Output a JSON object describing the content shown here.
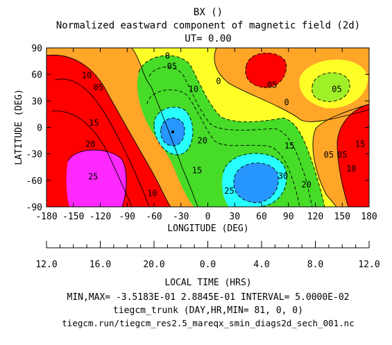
{
  "chart_data": {
    "type": "contour",
    "title": "BX ()",
    "subtitle": "Normalized eastward component of magnetic field (2d)",
    "ut_label": "UT= 0.00",
    "xlabel": "LONGITUDE (DEG)",
    "ylabel": "LATITUDE (DEG)",
    "x_ticks": [
      -180,
      -150,
      -120,
      -90,
      -60,
      -30,
      0,
      30,
      60,
      90,
      120,
      150,
      180
    ],
    "y_ticks": [
      -90,
      -60,
      -30,
      0,
      30,
      60,
      90
    ],
    "xlim": [
      -180,
      180
    ],
    "ylim": [
      -90,
      90
    ],
    "local_time_label": "LOCAL TIME (HRS)",
    "local_time_ticks": [
      "12.0",
      "16.0",
      "20.0",
      "0.0",
      "4.0",
      "8.0",
      "12.0"
    ],
    "min_max_interval": "MIN,MAX= -3.5183E-01  2.8845E-01 INTERVAL=  5.0000E-02",
    "model_info": "tiegcm_trunk (DAY,HR,MIN= 81, 0, 0)",
    "file_info": "tiegcm.run/tiegcm_res2.5_mareqx_smin_diags2d_sech_001.nc",
    "min": -0.35183,
    "max": 0.28845,
    "interval": 0.05,
    "contour_labels": [
      {
        "text": "0",
        "x": -45,
        "y": 78
      },
      {
        "text": "05",
        "x": -40,
        "y": 66
      },
      {
        "text": "10",
        "x": -135,
        "y": 56
      },
      {
        "text": "05",
        "x": -122,
        "y": 42
      },
      {
        "text": "10",
        "x": -16,
        "y": 40
      },
      {
        "text": "0",
        "x": 12,
        "y": 49
      },
      {
        "text": ".05",
        "x": 69,
        "y": 45
      },
      {
        "text": "0",
        "x": 88,
        "y": 25
      },
      {
        "text": "05",
        "x": 144,
        "y": 40
      },
      {
        "text": "15",
        "x": -127,
        "y": 2
      },
      {
        "text": "20",
        "x": -131,
        "y": -22
      },
      {
        "text": "20",
        "x": -6,
        "y": -18
      },
      {
        "text": "15",
        "x": 91,
        "y": -24
      },
      {
        "text": "15",
        "x": -12,
        "y": -52
      },
      {
        "text": "25",
        "x": -128,
        "y": -59
      },
      {
        "text": "25",
        "x": 24,
        "y": -75
      },
      {
        "text": "30",
        "x": 84,
        "y": -58
      },
      {
        "text": "20",
        "x": 110,
        "y": -68
      },
      {
        "text": "10",
        "x": -62,
        "y": -78
      },
      {
        "text": "05",
        "x": 150,
        "y": -34
      },
      {
        "text": "05",
        "x": 135,
        "y": -34
      },
      {
        "text": "15",
        "x": 170,
        "y": -22
      },
      {
        "text": "10",
        "x": 160,
        "y": -50
      }
    ]
  },
  "colors": {
    "red": "#ff0000",
    "orange_red": "#ff5a1e",
    "orange": "#ffa528",
    "yellow": "#ffff28",
    "yellow_green": "#a0f028",
    "green": "#46dc28",
    "cyan": "#28ffff",
    "blue": "#2896ff",
    "magenta": "#ff28ff"
  }
}
